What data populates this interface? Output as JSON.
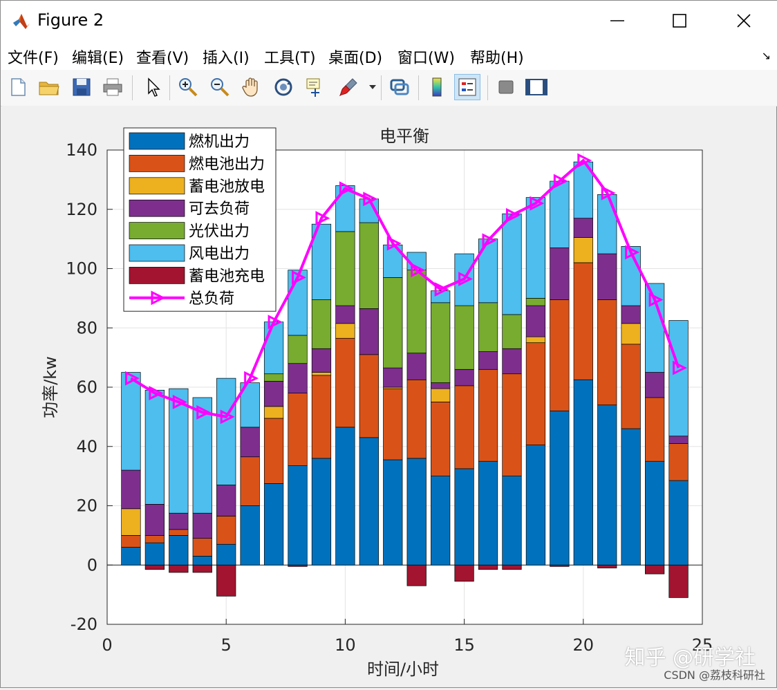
{
  "window": {
    "title": "Figure 2"
  },
  "menu": [
    "文件(F)",
    "编辑(E)",
    "查看(V)",
    "插入(I)",
    "工具(T)",
    "桌面(D)",
    "窗口(W)",
    "帮助(H)"
  ],
  "toolbar_icons": [
    "new-file-icon",
    "open-folder-icon",
    "save-icon",
    "print-icon",
    "pointer-icon",
    "zoom-in-icon",
    "zoom-out-icon",
    "pan-hand-icon",
    "rotate-3d-icon",
    "data-cursor-icon",
    "brush-icon",
    "link-plot-icon",
    "colorbar-icon",
    "legend-icon",
    "hide-plot-tools-icon",
    "show-plot-tools-icon"
  ],
  "watermark": {
    "line1": "知乎 @研学社",
    "line2": "CSDN @荔枝科研社"
  },
  "chart_data": {
    "type": "bar",
    "title": "电平衡",
    "xlabel": "时间/小时",
    "ylabel": "功率/kw",
    "xlim": [
      0,
      25
    ],
    "ylim": [
      -20,
      140
    ],
    "xticks": [
      "0",
      "5",
      "10",
      "15",
      "20",
      "25"
    ],
    "yticks": [
      "-20",
      "0",
      "20",
      "40",
      "60",
      "80",
      "100",
      "120",
      "140"
    ],
    "grid": true,
    "legend_position": "top-left",
    "stacked": true,
    "x": [
      1,
      2,
      3,
      4,
      5,
      6,
      7,
      8,
      9,
      10,
      11,
      12,
      13,
      14,
      15,
      16,
      17,
      18,
      19,
      20,
      21,
      22,
      23,
      24
    ],
    "series": [
      {
        "name": "燃机出力",
        "color": "#0072BD",
        "values": [
          6,
          7.5,
          10,
          3,
          7,
          20,
          27.5,
          33.5,
          36,
          46.5,
          43,
          35.5,
          36,
          30,
          32.5,
          35,
          30,
          40.5,
          52,
          62.5,
          54,
          46,
          35,
          28.5
        ]
      },
      {
        "name": "燃电池出力",
        "color": "#D95319",
        "values": [
          4,
          2.5,
          2,
          6,
          9.5,
          16.5,
          22,
          24.5,
          28,
          30,
          28,
          24,
          26.5,
          25,
          28,
          31,
          34.5,
          34.5,
          37.5,
          39.5,
          35.5,
          28.5,
          21.5,
          12.5
        ]
      },
      {
        "name": "蓄电池放电",
        "color": "#EDB120",
        "values": [
          9,
          0,
          0,
          0,
          0,
          0,
          4,
          0,
          1,
          5,
          0,
          0.5,
          0,
          4.5,
          0,
          0,
          0,
          2,
          0,
          8.5,
          0,
          7,
          0,
          0
        ]
      },
      {
        "name": "可去负荷",
        "color": "#7E2F8E",
        "values": [
          13,
          10.5,
          5.5,
          8.5,
          10.5,
          10,
          8.5,
          10,
          8,
          6,
          15.5,
          6.5,
          9,
          2,
          5.5,
          6,
          8.5,
          10.5,
          17.5,
          6.5,
          15.5,
          6,
          8.5,
          2.5
        ]
      },
      {
        "name": "光伏出力",
        "color": "#77AC30",
        "values": [
          0,
          0,
          0,
          0,
          0,
          0,
          2.5,
          9.5,
          16.5,
          25,
          29,
          30.5,
          28,
          27,
          21.5,
          16.5,
          11.5,
          2.5,
          0,
          0,
          0,
          0,
          0,
          0
        ]
      },
      {
        "name": "风电出力",
        "color": "#4DBEEE",
        "values": [
          33,
          38.5,
          42,
          39,
          36,
          15,
          17.5,
          22,
          25.5,
          15.5,
          8,
          11,
          6,
          4,
          17.5,
          21.5,
          34,
          34,
          22.5,
          19,
          20,
          20,
          30,
          39
        ]
      },
      {
        "name": "蓄电池充电",
        "color": "#A2142F",
        "values": [
          0,
          -1.5,
          -2.5,
          -2.5,
          -10.5,
          0,
          0,
          -0.5,
          0,
          0,
          0,
          0,
          -7,
          0,
          -5.5,
          -1.5,
          -1.5,
          0,
          -0.5,
          0,
          -1,
          0,
          -3,
          -11
        ]
      }
    ],
    "line": {
      "name": "总负荷",
      "color": "#FF00FF",
      "marker": "triangle-right",
      "values": [
        63,
        58,
        55,
        51.5,
        50,
        63,
        82,
        97,
        117,
        127,
        123.5,
        108.5,
        99.5,
        93,
        96.5,
        109.5,
        118,
        122,
        129.5,
        136.5,
        125.5,
        105.5,
        89.5,
        66.5
      ]
    }
  }
}
